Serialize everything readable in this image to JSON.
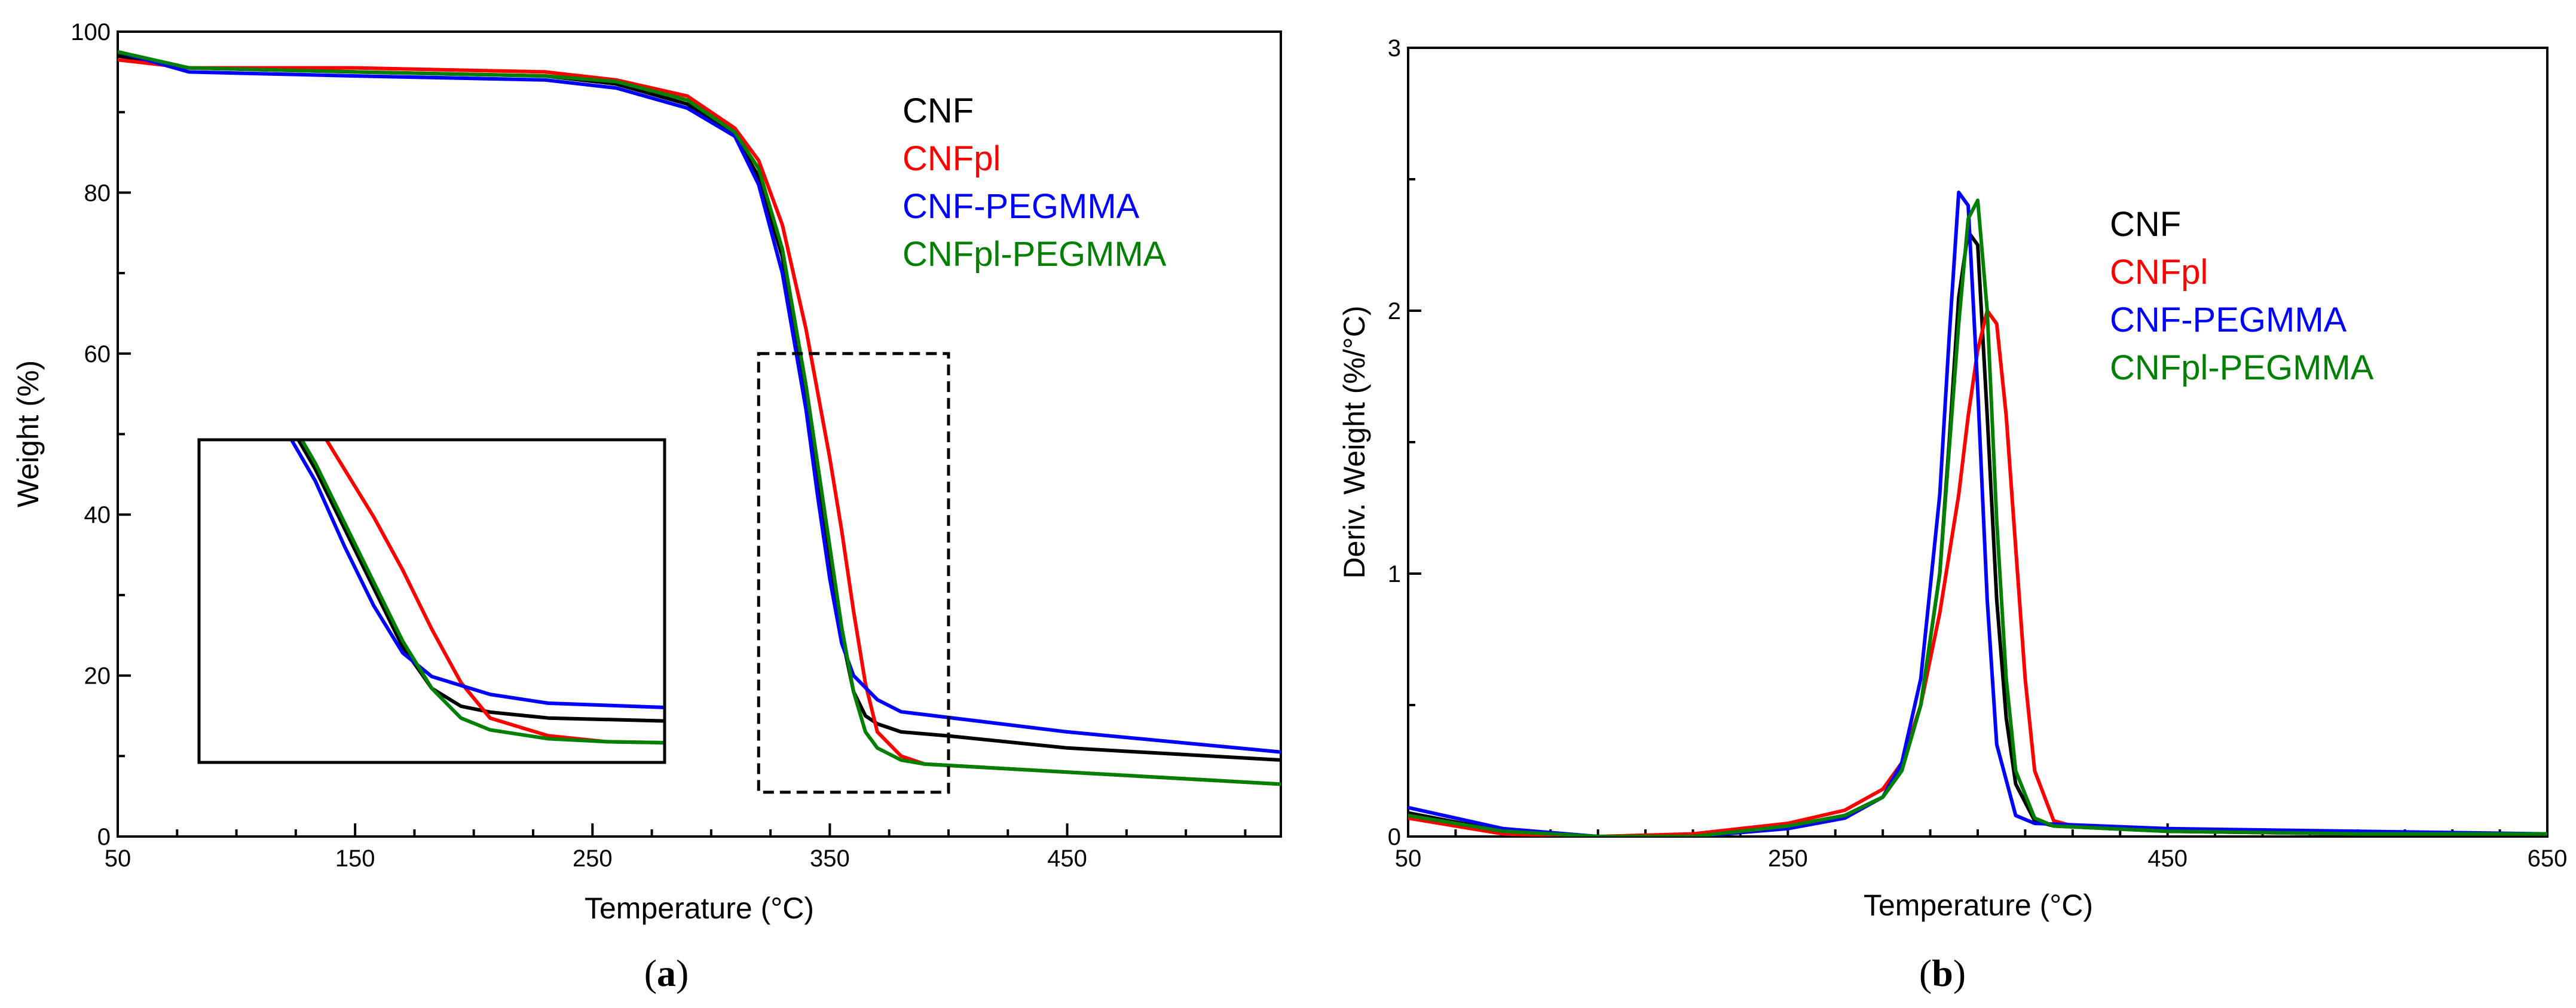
{
  "chart_data": [
    {
      "panel": "a",
      "type": "line",
      "title": "",
      "xlabel": "Temperature (°C)",
      "ylabel": "Weight (%)",
      "xlim": [
        50,
        540
      ],
      "ylim": [
        0,
        100
      ],
      "xticks": [
        50,
        150,
        250,
        350,
        450
      ],
      "yticks": [
        0,
        20,
        40,
        60,
        80,
        100
      ],
      "legend_position": "top-right",
      "series": [
        {
          "name": "CNF",
          "color": "#000000",
          "x": [
            50,
            80,
            150,
            230,
            260,
            290,
            310,
            320,
            330,
            340,
            345,
            350,
            355,
            360,
            365,
            370,
            380,
            400,
            450,
            540
          ],
          "y": [
            97,
            95.5,
            95,
            94.5,
            93.5,
            91,
            87,
            82,
            72,
            55,
            45,
            35,
            25,
            18,
            15,
            14,
            13,
            12.5,
            11,
            9.5
          ]
        },
        {
          "name": "CNFpl",
          "color": "#ff0000",
          "x": [
            50,
            80,
            150,
            230,
            260,
            290,
            310,
            320,
            330,
            340,
            350,
            355,
            360,
            365,
            370,
            380,
            390,
            450,
            540
          ],
          "y": [
            96.5,
            95.5,
            95.5,
            95,
            94,
            92,
            88,
            84,
            76,
            63,
            47,
            38,
            28,
            19,
            13,
            10,
            9,
            8,
            6.5
          ]
        },
        {
          "name": "CNF-PEGMMA",
          "color": "#0000ff",
          "x": [
            50,
            80,
            150,
            230,
            260,
            290,
            310,
            320,
            330,
            340,
            345,
            350,
            355,
            360,
            370,
            380,
            450,
            540
          ],
          "y": [
            97.5,
            95,
            94.5,
            94,
            93,
            90.5,
            87,
            81,
            70,
            53,
            42,
            32,
            24,
            20,
            17,
            15.5,
            13,
            10.5
          ]
        },
        {
          "name": "CNFpl-PEGMMA",
          "color": "#008000",
          "x": [
            50,
            80,
            150,
            230,
            260,
            290,
            310,
            320,
            330,
            340,
            345,
            350,
            355,
            360,
            365,
            370,
            380,
            390,
            450,
            540
          ],
          "y": [
            97.5,
            95.5,
            95,
            94.5,
            93.8,
            91.5,
            87.5,
            83,
            73,
            56,
            46,
            36,
            26,
            18,
            13,
            11,
            9.5,
            9,
            8,
            6.5
          ]
        }
      ],
      "annotations": [
        {
          "type": "dashed-box",
          "x_range": [
            320,
            400
          ],
          "y_range": [
            5.5,
            60
          ]
        },
        {
          "type": "zoom-inset",
          "shows_x_range": [
            320,
            400
          ],
          "shows_y_range": [
            5.5,
            60
          ]
        }
      ]
    },
    {
      "panel": "b",
      "type": "line",
      "title": "",
      "xlabel": "Temperature (°C)",
      "ylabel": "Deriv. Weight (%/°C)",
      "xlim": [
        50,
        650
      ],
      "ylim": [
        0,
        3
      ],
      "xticks": [
        50,
        250,
        450,
        650
      ],
      "yticks": [
        0,
        1,
        2,
        3
      ],
      "legend_position": "right",
      "series": [
        {
          "name": "CNF",
          "color": "#000000",
          "x": [
            50,
            100,
            150,
            200,
            250,
            280,
            300,
            310,
            320,
            330,
            335,
            340,
            345,
            350,
            355,
            360,
            365,
            370,
            380,
            390,
            450,
            550,
            650
          ],
          "y": [
            0.09,
            0.02,
            0.0,
            0.0,
            0.04,
            0.08,
            0.15,
            0.25,
            0.5,
            1.0,
            1.5,
            2.05,
            2.3,
            2.25,
            1.6,
            0.9,
            0.45,
            0.2,
            0.06,
            0.04,
            0.02,
            0.01,
            0.01
          ]
        },
        {
          "name": "CNFpl",
          "color": "#ff0000",
          "x": [
            50,
            100,
            150,
            200,
            250,
            280,
            300,
            310,
            320,
            330,
            340,
            345,
            350,
            355,
            360,
            365,
            370,
            375,
            380,
            390,
            400,
            450,
            550,
            650
          ],
          "y": [
            0.07,
            0.01,
            0.0,
            0.01,
            0.05,
            0.1,
            0.18,
            0.28,
            0.5,
            0.85,
            1.3,
            1.6,
            1.85,
            2.0,
            1.95,
            1.6,
            1.1,
            0.6,
            0.25,
            0.06,
            0.04,
            0.02,
            0.01,
            0.01
          ]
        },
        {
          "name": "CNF-PEGMMA",
          "color": "#0000ff",
          "x": [
            50,
            100,
            150,
            200,
            250,
            280,
            300,
            310,
            320,
            330,
            335,
            340,
            345,
            350,
            355,
            360,
            370,
            380,
            450,
            550,
            650
          ],
          "y": [
            0.11,
            0.03,
            0.0,
            0.0,
            0.03,
            0.07,
            0.15,
            0.28,
            0.6,
            1.3,
            1.9,
            2.45,
            2.4,
            1.7,
            0.9,
            0.35,
            0.08,
            0.05,
            0.03,
            0.02,
            0.01
          ]
        },
        {
          "name": "CNFpl-PEGMMA",
          "color": "#008000",
          "x": [
            50,
            100,
            150,
            200,
            250,
            280,
            300,
            310,
            320,
            330,
            340,
            345,
            350,
            355,
            360,
            365,
            370,
            380,
            390,
            450,
            550,
            650
          ],
          "y": [
            0.08,
            0.02,
            0.0,
            0.0,
            0.04,
            0.08,
            0.15,
            0.25,
            0.5,
            1.0,
            1.95,
            2.35,
            2.42,
            2.0,
            1.2,
            0.6,
            0.25,
            0.07,
            0.04,
            0.02,
            0.01,
            0.01
          ]
        }
      ]
    }
  ],
  "panel_labels": {
    "a": {
      "open": "(",
      "letter": "a",
      "close": ")"
    },
    "b": {
      "open": "(",
      "letter": "b",
      "close": ")"
    }
  }
}
